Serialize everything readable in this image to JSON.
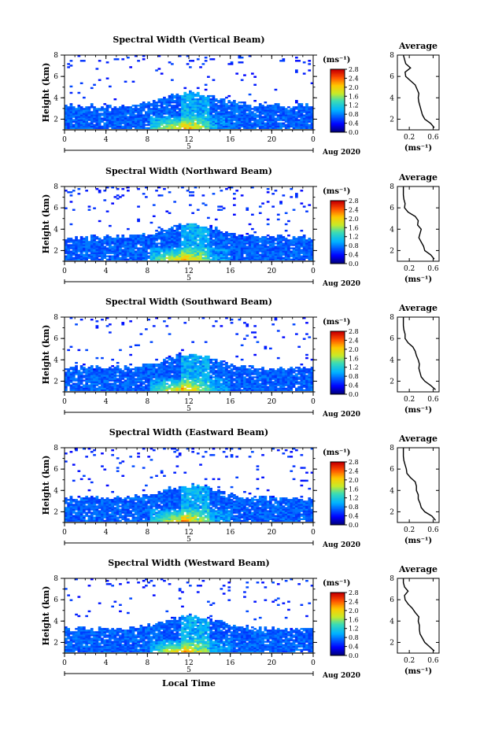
{
  "chart_data": [
    {
      "type": "heatmap",
      "title": "Spectral Width (Vertical Beam)",
      "ylabel": "Height (km)",
      "xticks": [
        "0",
        "4",
        "8",
        "12",
        "16",
        "20",
        "0"
      ],
      "yticks": [
        "2",
        "4",
        "6",
        "8"
      ],
      "day_label": "5",
      "month_label": "Aug 2020",
      "xlim": [
        0,
        24
      ],
      "ylim": [
        1,
        8
      ],
      "colorbar": {
        "unit": "(ms⁻¹)",
        "ticks": [
          "0.0",
          "0.4",
          "0.8",
          "1.2",
          "1.6",
          "2.0",
          "2.4",
          "2.8"
        ]
      },
      "average": {
        "title": "Average",
        "xlabel": "(ms⁻¹)",
        "xticks": [
          "0.2",
          "0.6"
        ],
        "yticks": [
          "2",
          "4",
          "6",
          "8"
        ],
        "xlim": [
          0,
          0.7
        ],
        "ylim": [
          1,
          8
        ],
        "heights": [
          1.2,
          1.6,
          2.0,
          2.4,
          2.8,
          3.2,
          3.6,
          4.0,
          4.4,
          4.8,
          5.2,
          5.6,
          6.0,
          6.4,
          6.8,
          7.2,
          7.6,
          8.0
        ],
        "values": [
          0.62,
          0.56,
          0.46,
          0.42,
          0.4,
          0.38,
          0.36,
          0.35,
          0.36,
          0.33,
          0.3,
          0.22,
          0.14,
          0.13,
          0.22,
          0.14,
          0.12,
          0.1
        ]
      }
    },
    {
      "type": "heatmap",
      "title": "Spectral Width (Northward Beam)",
      "ylabel": "Height (km)",
      "xticks": [
        "0",
        "4",
        "8",
        "12",
        "16",
        "20",
        "0"
      ],
      "yticks": [
        "2",
        "4",
        "6",
        "8"
      ],
      "day_label": "5",
      "month_label": "Aug 2020",
      "xlim": [
        0,
        24
      ],
      "ylim": [
        1,
        8
      ],
      "colorbar": {
        "unit": "(ms⁻¹)",
        "ticks": [
          "0.0",
          "0.4",
          "0.8",
          "1.2",
          "1.6",
          "2.0",
          "2.4",
          "2.8"
        ]
      },
      "average": {
        "title": "Average",
        "xlabel": "(ms⁻¹)",
        "xticks": [
          "0.2",
          "0.6"
        ],
        "yticks": [
          "2",
          "4",
          "6",
          "8"
        ],
        "xlim": [
          0,
          0.7
        ],
        "ylim": [
          1,
          8
        ],
        "heights": [
          1.2,
          1.6,
          2.0,
          2.4,
          2.8,
          3.2,
          3.6,
          4.0,
          4.4,
          4.8,
          5.2,
          5.6,
          6.0,
          6.4,
          6.8,
          7.2,
          7.6,
          8.0
        ],
        "values": [
          0.62,
          0.56,
          0.46,
          0.44,
          0.4,
          0.36,
          0.38,
          0.4,
          0.34,
          0.35,
          0.3,
          0.18,
          0.12,
          0.13,
          0.11,
          0.1,
          0.1,
          0.1
        ]
      }
    },
    {
      "type": "heatmap",
      "title": "Spectral Width (Southward Beam)",
      "ylabel": "Height (km)",
      "xticks": [
        "0",
        "4",
        "8",
        "12",
        "16",
        "20",
        "0"
      ],
      "yticks": [
        "2",
        "4",
        "6",
        "8"
      ],
      "day_label": "5",
      "month_label": "Aug 2020",
      "xlim": [
        0,
        24
      ],
      "ylim": [
        1,
        8
      ],
      "colorbar": {
        "unit": "(ms⁻¹)",
        "ticks": [
          "0.0",
          "0.4",
          "0.8",
          "1.2",
          "1.6",
          "2.0",
          "2.4",
          "2.8"
        ]
      },
      "average": {
        "title": "Average",
        "xlabel": "(ms⁻¹)",
        "xticks": [
          "0.2",
          "0.6"
        ],
        "yticks": [
          "2",
          "4",
          "6",
          "8"
        ],
        "xlim": [
          0,
          0.7
        ],
        "ylim": [
          1,
          8
        ],
        "heights": [
          1.2,
          1.6,
          2.0,
          2.4,
          2.8,
          3.2,
          3.6,
          4.0,
          4.4,
          4.8,
          5.2,
          5.6,
          6.0,
          6.4,
          6.8,
          7.2,
          7.6,
          8.0
        ],
        "values": [
          0.64,
          0.56,
          0.46,
          0.4,
          0.38,
          0.36,
          0.37,
          0.35,
          0.32,
          0.3,
          0.26,
          0.18,
          0.13,
          0.13,
          0.11,
          0.1,
          0.1,
          0.1
        ]
      }
    },
    {
      "type": "heatmap",
      "title": "Spectral Width (Eastward Beam)",
      "ylabel": "Height (km)",
      "xticks": [
        "0",
        "4",
        "8",
        "12",
        "16",
        "20",
        "0"
      ],
      "yticks": [
        "2",
        "4",
        "6",
        "8"
      ],
      "day_label": "5",
      "month_label": "Aug 2020",
      "xlim": [
        0,
        24
      ],
      "ylim": [
        1,
        8
      ],
      "colorbar": {
        "unit": "(ms⁻¹)",
        "ticks": [
          "0.0",
          "0.4",
          "0.8",
          "1.2",
          "1.6",
          "2.0",
          "2.4",
          "2.8"
        ]
      },
      "average": {
        "title": "Average",
        "xlabel": "(ms⁻¹)",
        "xticks": [
          "0.2",
          "0.6"
        ],
        "yticks": [
          "2",
          "4",
          "6",
          "8"
        ],
        "xlim": [
          0,
          0.7
        ],
        "ylim": [
          1,
          8
        ],
        "heights": [
          1.2,
          1.6,
          2.0,
          2.4,
          2.8,
          3.2,
          3.6,
          4.0,
          4.4,
          4.8,
          5.2,
          5.6,
          6.0,
          6.4,
          6.8,
          7.2,
          7.6,
          8.0
        ],
        "values": [
          0.64,
          0.58,
          0.46,
          0.4,
          0.38,
          0.35,
          0.35,
          0.32,
          0.32,
          0.3,
          0.22,
          0.16,
          0.15,
          0.13,
          0.11,
          0.1,
          0.1,
          0.1
        ]
      }
    },
    {
      "type": "heatmap",
      "title": "Spectral Width (Westward Beam)",
      "ylabel": "Height (km)",
      "xlabel": "Local Time",
      "xticks": [
        "0",
        "4",
        "8",
        "12",
        "16",
        "20",
        "0"
      ],
      "yticks": [
        "2",
        "4",
        "6",
        "8"
      ],
      "day_label": "5",
      "month_label": "Aug 2020",
      "xlim": [
        0,
        24
      ],
      "ylim": [
        1,
        8
      ],
      "colorbar": {
        "unit": "(ms⁻¹)",
        "ticks": [
          "0.0",
          "0.4",
          "0.8",
          "1.2",
          "1.6",
          "2.0",
          "2.4",
          "2.8"
        ]
      },
      "average": {
        "title": "Average",
        "xlabel": "(ms⁻¹)",
        "xticks": [
          "0.2",
          "0.6"
        ],
        "yticks": [
          "2",
          "4",
          "6",
          "8"
        ],
        "xlim": [
          0,
          0.7
        ],
        "ylim": [
          1,
          8
        ],
        "heights": [
          1.2,
          1.6,
          2.0,
          2.4,
          2.8,
          3.2,
          3.6,
          4.0,
          4.4,
          4.8,
          5.2,
          5.6,
          6.0,
          6.4,
          6.8,
          7.2,
          7.6,
          8.0
        ],
        "values": [
          0.62,
          0.54,
          0.46,
          0.42,
          0.38,
          0.37,
          0.37,
          0.35,
          0.36,
          0.3,
          0.25,
          0.18,
          0.13,
          0.12,
          0.18,
          0.12,
          0.1,
          0.1
        ]
      }
    }
  ]
}
